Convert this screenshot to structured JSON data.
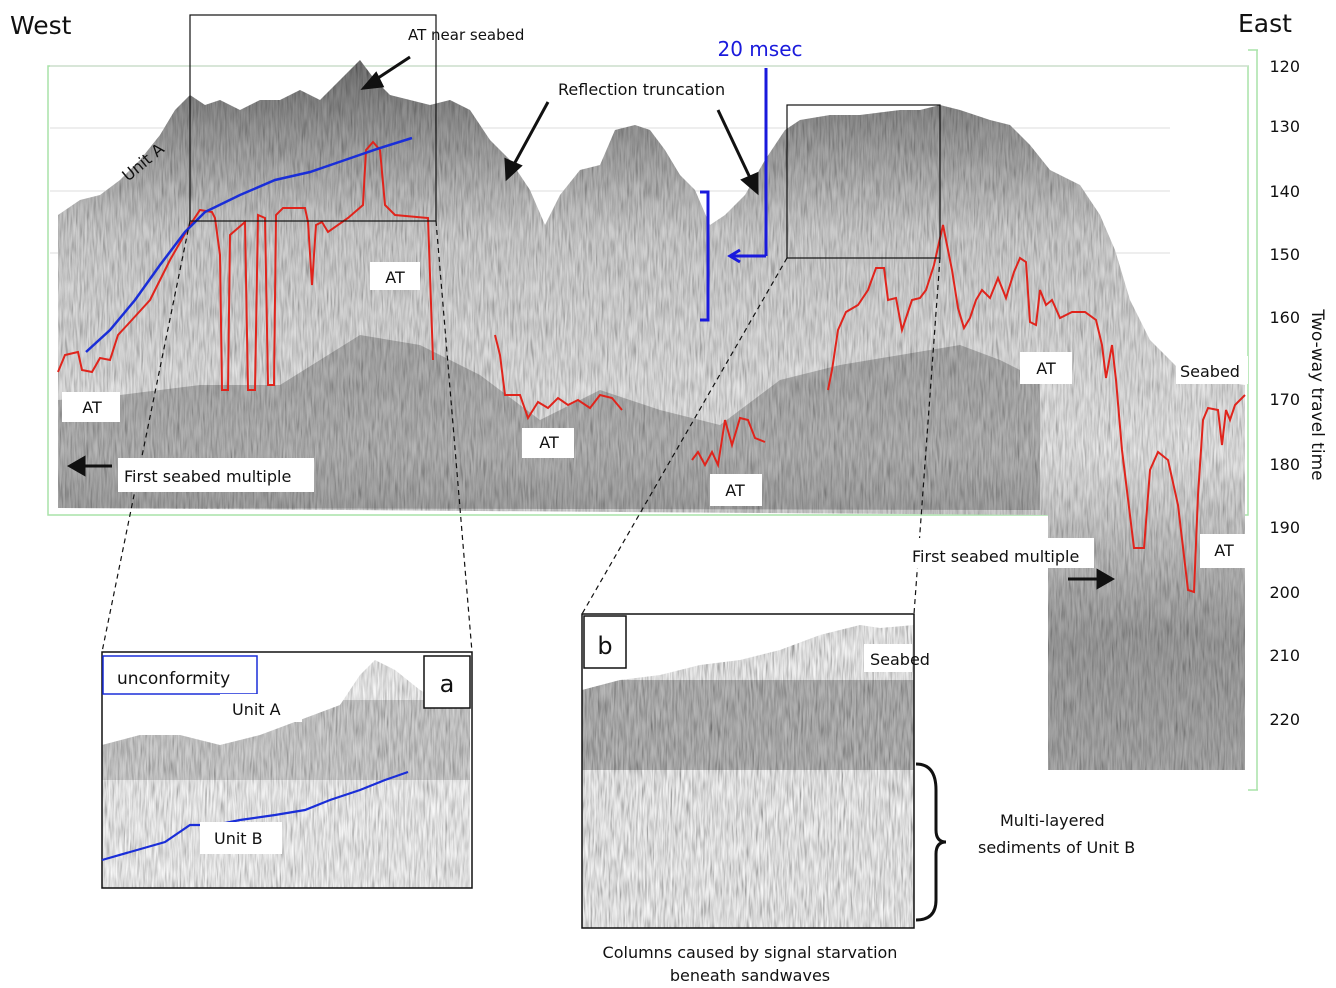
{
  "direction": {
    "west": "West",
    "east": "East"
  },
  "scale": {
    "label": "20 msec",
    "color": "#1a1adc"
  },
  "axis": {
    "label": "Two-way travel time",
    "ticks": [
      "120",
      "130",
      "140",
      "150",
      "160",
      "170",
      "180",
      "190",
      "200",
      "210",
      "220"
    ]
  },
  "annotations": {
    "at_near_seabed": "AT near seabed",
    "reflection_truncation": "Reflection truncation",
    "unit_a": "Unit A",
    "at_labels": [
      "AT",
      "AT",
      "AT",
      "AT",
      "AT",
      "AT"
    ],
    "first_multiple_west": "First seabed multiple",
    "first_multiple_east": "First seabed multiple",
    "seabed_east": "Seabed"
  },
  "inset_a": {
    "tag": "a",
    "unconformity": "unconformity",
    "unit_a": "Unit A",
    "unit_b": "Unit B"
  },
  "inset_b": {
    "tag": "b",
    "seabed": "Seabed",
    "multi_layer_1": "Multi-layered",
    "multi_layer_2": "sediments of Unit B",
    "caption_1": "Columns caused by signal starvation",
    "caption_2": "beneath sandwaves"
  },
  "colors": {
    "interpretation_red": "#e0241c",
    "unconformity_blue": "#1a2ed8"
  }
}
